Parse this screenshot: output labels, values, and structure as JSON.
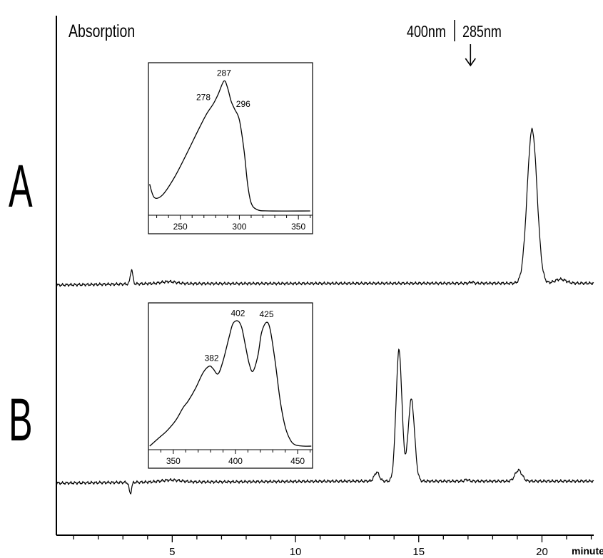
{
  "chart_data": {
    "type": "line",
    "ylabel": "Absorption",
    "xlabel": "minute",
    "xlim": [
      0.3,
      22.1
    ],
    "x_ticks": [
      {
        "value": 5,
        "label": "5"
      },
      {
        "value": 10,
        "label": "10"
      },
      {
        "value": 15,
        "label": "15"
      },
      {
        "value": 20,
        "label": "20"
      }
    ],
    "wavelength_switch": {
      "time": 17.1,
      "before_label": "400nm",
      "after_label": "285nm"
    },
    "panels": [
      {
        "label": "A",
        "baseline_points": [
          [
            0.3,
            0.0
          ],
          [
            3.2,
            0.05
          ],
          [
            4.0,
            0.07
          ],
          [
            17.1,
            0.09
          ],
          [
            22.1,
            0.09
          ]
        ],
        "peaks": [
          {
            "time": 3.35,
            "height": 0.72,
            "width": 0.05
          },
          {
            "time": 4.85,
            "height": 0.1,
            "width": 0.3
          },
          {
            "time": 17.15,
            "height": 0.06,
            "width": 0.08
          },
          {
            "time": 19.6,
            "height": 7.7,
            "width": 0.2
          },
          {
            "time": 20.75,
            "height": 0.2,
            "width": 0.22
          }
        ],
        "inset": {
          "x_ticks": [
            {
              "value": 250,
              "label": "250"
            },
            {
              "value": 300,
              "label": "300"
            },
            {
              "value": 350,
              "label": "350"
            }
          ],
          "xlim": [
            223,
            362
          ],
          "spectrum": [
            [
              224,
              0.2
            ],
            [
              228,
              0.1
            ],
            [
              235,
              0.12
            ],
            [
              245,
              0.25
            ],
            [
              255,
              0.42
            ],
            [
              265,
              0.6
            ],
            [
              272,
              0.72
            ],
            [
              278,
              0.8
            ],
            [
              282,
              0.87
            ],
            [
              287,
              0.97
            ],
            [
              290,
              0.92
            ],
            [
              293,
              0.82
            ],
            [
              296,
              0.76
            ],
            [
              300,
              0.68
            ],
            [
              304,
              0.45
            ],
            [
              307,
              0.2
            ],
            [
              310,
              0.06
            ],
            [
              315,
              0.01
            ],
            [
              325,
              0.0
            ],
            [
              360,
              0.0
            ]
          ],
          "peak_labels": [
            {
              "wavelength": 278,
              "label": "278"
            },
            {
              "wavelength": 287,
              "label": "287"
            },
            {
              "wavelength": 296,
              "label": "296"
            }
          ]
        }
      },
      {
        "label": "B",
        "baseline_points": [
          [
            0.3,
            0.0
          ],
          [
            4.0,
            0.05
          ],
          [
            12.5,
            0.1
          ],
          [
            17.1,
            0.1
          ],
          [
            22.1,
            0.1
          ]
        ],
        "peaks": [
          {
            "time": 3.3,
            "height": -0.55,
            "width": 0.05
          },
          {
            "time": 4.95,
            "height": 0.1,
            "width": 0.4
          },
          {
            "time": 13.3,
            "height": 0.45,
            "width": 0.1
          },
          {
            "time": 14.2,
            "height": 6.55,
            "width": 0.12
          },
          {
            "time": 14.7,
            "height": 4.1,
            "width": 0.13
          },
          {
            "time": 16.95,
            "height": 0.08,
            "width": 0.08
          },
          {
            "time": 19.05,
            "height": 0.55,
            "width": 0.14
          }
        ],
        "inset": {
          "x_ticks": [
            {
              "value": 350,
              "label": "350"
            },
            {
              "value": 400,
              "label": "400"
            },
            {
              "value": 450,
              "label": "450"
            }
          ],
          "xlim": [
            330,
            462
          ],
          "spectrum": [
            [
              331,
              0.0
            ],
            [
              338,
              0.06
            ],
            [
              345,
              0.12
            ],
            [
              352,
              0.2
            ],
            [
              358,
              0.3
            ],
            [
              362,
              0.35
            ],
            [
              368,
              0.45
            ],
            [
              374,
              0.57
            ],
            [
              379,
              0.62
            ],
            [
              382,
              0.6
            ],
            [
              386,
              0.56
            ],
            [
              390,
              0.66
            ],
            [
              395,
              0.85
            ],
            [
              398,
              0.95
            ],
            [
              402,
              0.97
            ],
            [
              405,
              0.92
            ],
            [
              408,
              0.78
            ],
            [
              411,
              0.64
            ],
            [
              414,
              0.58
            ],
            [
              418,
              0.7
            ],
            [
              421,
              0.88
            ],
            [
              425,
              0.96
            ],
            [
              428,
              0.9
            ],
            [
              432,
              0.65
            ],
            [
              436,
              0.35
            ],
            [
              440,
              0.15
            ],
            [
              444,
              0.05
            ],
            [
              448,
              0.01
            ],
            [
              455,
              0.0
            ],
            [
              461,
              0.0
            ]
          ],
          "peak_labels": [
            {
              "wavelength": 382,
              "label": "382"
            },
            {
              "wavelength": 402,
              "label": "402"
            },
            {
              "wavelength": 425,
              "label": "425"
            }
          ]
        }
      }
    ]
  }
}
